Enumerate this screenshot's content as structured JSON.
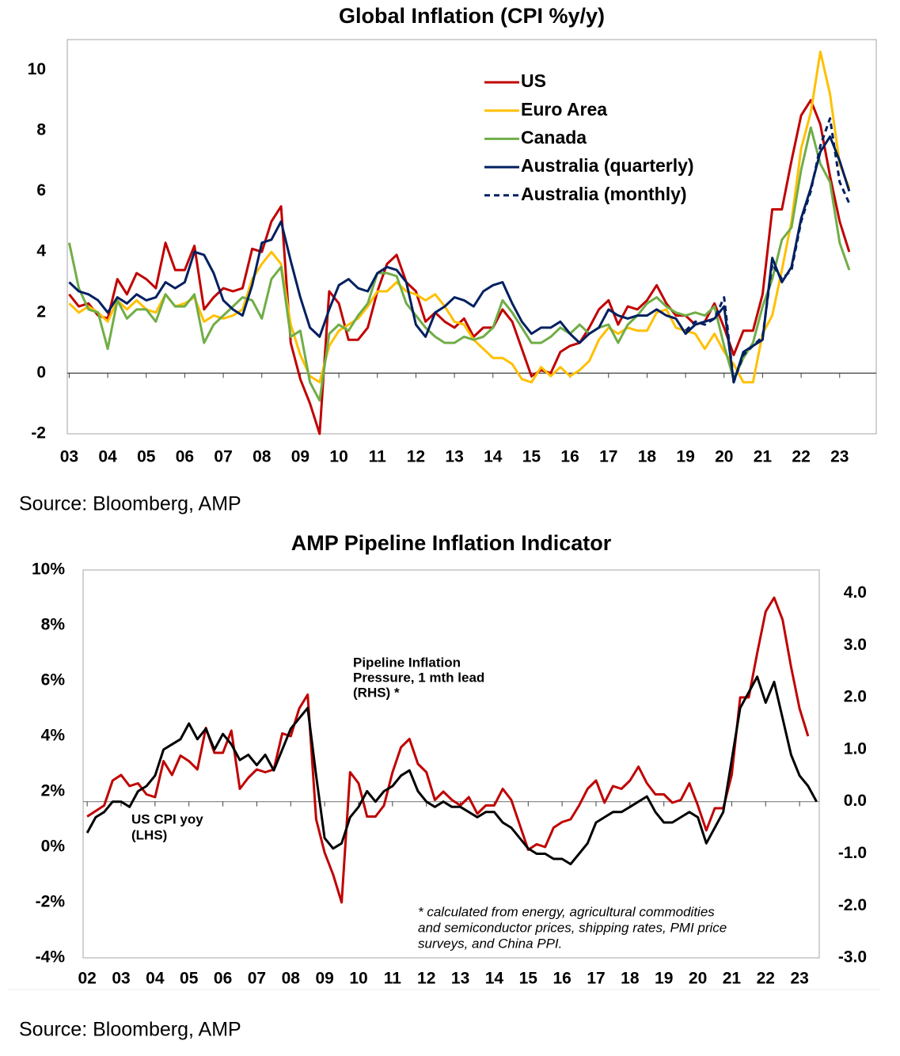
{
  "chart_data": [
    {
      "type": "line",
      "title": "Global Inflation (CPI %y/y)",
      "source": "Source: Bloomberg, AMP",
      "legend": "top",
      "x": [
        2003,
        2003.25,
        2003.5,
        2003.75,
        2004,
        2004.25,
        2004.5,
        2004.75,
        2005,
        2005.25,
        2005.5,
        2005.75,
        2006,
        2006.25,
        2006.5,
        2006.75,
        2007,
        2007.25,
        2007.5,
        2007.75,
        2008,
        2008.25,
        2008.5,
        2008.75,
        2009,
        2009.25,
        2009.5,
        2009.75,
        2010,
        2010.25,
        2010.5,
        2010.75,
        2011,
        2011.25,
        2011.5,
        2011.75,
        2012,
        2012.25,
        2012.5,
        2012.75,
        2013,
        2013.25,
        2013.5,
        2013.75,
        2014,
        2014.25,
        2014.5,
        2014.75,
        2015,
        2015.25,
        2015.5,
        2015.75,
        2016,
        2016.25,
        2016.5,
        2016.75,
        2017,
        2017.25,
        2017.5,
        2017.75,
        2018,
        2018.25,
        2018.5,
        2018.75,
        2019,
        2019.25,
        2019.5,
        2019.75,
        2020,
        2020.25,
        2020.5,
        2020.75,
        2021,
        2021.25,
        2021.5,
        2021.75,
        2022,
        2022.25,
        2022.5,
        2022.75,
        2023,
        2023.25
      ],
      "xlim": [
        2002.95,
        2023.95
      ],
      "xticks": [
        {
          "value": 2003,
          "label": "03"
        },
        {
          "value": 2004,
          "label": "04"
        },
        {
          "value": 2005,
          "label": "05"
        },
        {
          "value": 2006,
          "label": "06"
        },
        {
          "value": 2007,
          "label": "07"
        },
        {
          "value": 2008,
          "label": "08"
        },
        {
          "value": 2009,
          "label": "09"
        },
        {
          "value": 2010,
          "label": "10"
        },
        {
          "value": 2011,
          "label": "11"
        },
        {
          "value": 2012,
          "label": "12"
        },
        {
          "value": 2013,
          "label": "13"
        },
        {
          "value": 2014,
          "label": "14"
        },
        {
          "value": 2015,
          "label": "15"
        },
        {
          "value": 2016,
          "label": "16"
        },
        {
          "value": 2017,
          "label": "17"
        },
        {
          "value": 2018,
          "label": "18"
        },
        {
          "value": 2019,
          "label": "19"
        },
        {
          "value": 2020,
          "label": "20"
        },
        {
          "value": 2021,
          "label": "21"
        },
        {
          "value": 2022,
          "label": "22"
        },
        {
          "value": 2023,
          "label": "23"
        }
      ],
      "ylim": [
        -2,
        11
      ],
      "yticks": [
        -2,
        0,
        2,
        4,
        6,
        8,
        10
      ],
      "series": [
        {
          "name": "US",
          "color": "#c00000",
          "values": [
            2.6,
            2.2,
            2.3,
            1.9,
            1.8,
            3.1,
            2.6,
            3.3,
            3.1,
            2.8,
            4.3,
            3.4,
            3.4,
            4.2,
            2.1,
            2.5,
            2.8,
            2.7,
            2.8,
            4.1,
            4.0,
            5.0,
            5.5,
            1.0,
            -0.2,
            -1.0,
            -2.0,
            2.7,
            2.3,
            1.1,
            1.1,
            1.5,
            2.7,
            3.6,
            3.9,
            3.0,
            2.7,
            1.7,
            2.0,
            1.7,
            1.5,
            1.8,
            1.2,
            1.5,
            1.5,
            2.1,
            1.7,
            0.8,
            -0.1,
            0.1,
            0.0,
            0.7,
            0.9,
            1.0,
            1.5,
            2.1,
            2.4,
            1.6,
            2.2,
            2.1,
            2.4,
            2.9,
            2.3,
            1.9,
            1.9,
            1.6,
            1.7,
            2.3,
            1.5,
            0.6,
            1.4,
            1.4,
            2.6,
            5.4,
            5.4,
            7.0,
            8.5,
            9.0,
            8.2,
            6.5,
            5.0,
            4.0
          ]
        },
        {
          "name": "Euro Area",
          "color": "#ffc000",
          "values": [
            2.3,
            2.0,
            2.2,
            2.0,
            1.7,
            2.4,
            2.1,
            2.4,
            2.1,
            2.0,
            2.6,
            2.2,
            2.3,
            2.5,
            1.7,
            1.9,
            1.8,
            1.9,
            2.1,
            3.1,
            3.6,
            4.0,
            3.6,
            1.6,
            0.6,
            -0.1,
            -0.3,
            0.9,
            1.4,
            1.6,
            1.8,
            2.2,
            2.7,
            2.7,
            3.0,
            2.7,
            2.6,
            2.4,
            2.6,
            2.2,
            1.7,
            1.6,
            1.1,
            0.8,
            0.5,
            0.5,
            0.3,
            -0.2,
            -0.3,
            0.2,
            -0.1,
            0.2,
            -0.1,
            0.1,
            0.4,
            1.1,
            1.5,
            1.3,
            1.5,
            1.4,
            1.4,
            2.0,
            2.1,
            1.5,
            1.4,
            1.3,
            0.8,
            1.3,
            0.7,
            0.3,
            -0.3,
            -0.3,
            1.3,
            1.9,
            3.4,
            5.0,
            7.4,
            8.6,
            10.6,
            9.2,
            6.9,
            6.1
          ]
        },
        {
          "name": "Canada",
          "color": "#70ad47",
          "values": [
            4.3,
            2.8,
            2.1,
            2.0,
            0.8,
            2.4,
            1.8,
            2.1,
            2.1,
            1.7,
            2.6,
            2.2,
            2.2,
            2.6,
            1.0,
            1.6,
            1.9,
            2.2,
            2.5,
            2.4,
            1.8,
            3.1,
            3.5,
            1.2,
            1.4,
            -0.3,
            -0.9,
            1.3,
            1.6,
            1.4,
            1.9,
            2.3,
            3.3,
            3.3,
            3.2,
            2.3,
            1.9,
            1.5,
            1.2,
            1.0,
            1.0,
            1.2,
            1.1,
            1.2,
            1.5,
            2.4,
            2.0,
            1.5,
            1.0,
            1.0,
            1.2,
            1.5,
            1.3,
            1.6,
            1.3,
            1.5,
            1.6,
            1.0,
            1.6,
            1.9,
            2.3,
            2.5,
            2.2,
            2.0,
            1.9,
            2.0,
            1.9,
            2.2,
            0.9,
            -0.2,
            0.5,
            1.0,
            2.2,
            3.1,
            4.4,
            4.8,
            6.7,
            8.1,
            6.9,
            6.3,
            4.3,
            3.4
          ]
        },
        {
          "name": "Australia (quarterly)",
          "color": "#002060",
          "values": [
            3.0,
            2.7,
            2.6,
            2.4,
            2.0,
            2.5,
            2.3,
            2.6,
            2.4,
            2.5,
            3.0,
            2.8,
            3.0,
            4.0,
            3.9,
            3.3,
            2.4,
            2.1,
            1.9,
            2.9,
            4.3,
            4.4,
            5.0,
            3.7,
            2.5,
            1.5,
            1.2,
            2.1,
            2.9,
            3.1,
            2.8,
            2.7,
            3.3,
            3.5,
            3.4,
            3.0,
            1.6,
            1.2,
            2.0,
            2.2,
            2.5,
            2.4,
            2.2,
            2.7,
            2.9,
            3.0,
            2.3,
            1.7,
            1.3,
            1.5,
            1.5,
            1.7,
            1.3,
            1.0,
            1.3,
            1.5,
            2.1,
            1.9,
            1.8,
            1.9,
            1.9,
            2.1,
            1.9,
            1.8,
            1.3,
            1.6,
            1.7,
            1.8,
            2.2,
            -0.3,
            0.7,
            0.9,
            1.1,
            3.8,
            3.0,
            3.5,
            5.1,
            6.1,
            7.3,
            7.8,
            7.0,
            6.0
          ]
        },
        {
          "name": "Australia (monthly)",
          "color": "#002060",
          "dashed": true,
          "values": [
            null,
            null,
            null,
            null,
            null,
            null,
            null,
            null,
            null,
            null,
            null,
            null,
            null,
            null,
            null,
            null,
            null,
            null,
            null,
            null,
            null,
            null,
            null,
            null,
            null,
            null,
            null,
            null,
            null,
            null,
            null,
            null,
            null,
            null,
            null,
            null,
            null,
            null,
            null,
            null,
            null,
            null,
            null,
            null,
            null,
            null,
            null,
            null,
            null,
            null,
            null,
            null,
            null,
            null,
            null,
            null,
            null,
            null,
            null,
            null,
            null,
            null,
            null,
            null,
            1.4,
            1.7,
            1.6,
            1.8,
            2.5,
            -0.3,
            0.6,
            0.9,
            1.2,
            3.6,
            3.1,
            3.4,
            5.0,
            6.0,
            7.5,
            8.4,
            6.3,
            5.6
          ]
        }
      ]
    },
    {
      "type": "line",
      "title": "AMP Pipeline Inflation Indicator",
      "source": "Source: Bloomberg, AMP",
      "x": [
        2002,
        2002.25,
        2002.5,
        2002.75,
        2003,
        2003.25,
        2003.5,
        2003.75,
        2004,
        2004.25,
        2004.5,
        2004.75,
        2005,
        2005.25,
        2005.5,
        2005.75,
        2006,
        2006.25,
        2006.5,
        2006.75,
        2007,
        2007.25,
        2007.5,
        2007.75,
        2008,
        2008.25,
        2008.5,
        2008.75,
        2009,
        2009.25,
        2009.5,
        2009.75,
        2010,
        2010.25,
        2010.5,
        2010.75,
        2011,
        2011.25,
        2011.5,
        2011.75,
        2012,
        2012.25,
        2012.5,
        2012.75,
        2013,
        2013.25,
        2013.5,
        2013.75,
        2014,
        2014.25,
        2014.5,
        2014.75,
        2015,
        2015.25,
        2015.5,
        2015.75,
        2016,
        2016.25,
        2016.5,
        2016.75,
        2017,
        2017.25,
        2017.5,
        2017.75,
        2018,
        2018.25,
        2018.5,
        2018.75,
        2019,
        2019.25,
        2019.5,
        2019.75,
        2020,
        2020.25,
        2020.5,
        2020.75,
        2021,
        2021.25,
        2021.5,
        2021.75,
        2022,
        2022.25,
        2022.5,
        2022.75,
        2023,
        2023.25,
        2023.5
      ],
      "xlim": [
        2001.88,
        2023.58
      ],
      "xticks": [
        {
          "value": 2002,
          "label": "02"
        },
        {
          "value": 2003,
          "label": "03"
        },
        {
          "value": 2004,
          "label": "04"
        },
        {
          "value": 2005,
          "label": "05"
        },
        {
          "value": 2006,
          "label": "06"
        },
        {
          "value": 2007,
          "label": "07"
        },
        {
          "value": 2008,
          "label": "08"
        },
        {
          "value": 2009,
          "label": "09"
        },
        {
          "value": 2010,
          "label": "10"
        },
        {
          "value": 2011,
          "label": "11"
        },
        {
          "value": 2012,
          "label": "12"
        },
        {
          "value": 2013,
          "label": "13"
        },
        {
          "value": 2014,
          "label": "14"
        },
        {
          "value": 2015,
          "label": "15"
        },
        {
          "value": 2016,
          "label": "16"
        },
        {
          "value": 2017,
          "label": "17"
        },
        {
          "value": 2018,
          "label": "18"
        },
        {
          "value": 2019,
          "label": "19"
        },
        {
          "value": 2020,
          "label": "20"
        },
        {
          "value": 2021,
          "label": "21"
        },
        {
          "value": 2022,
          "label": "22"
        },
        {
          "value": 2023,
          "label": "23"
        }
      ],
      "ylim": [
        -4,
        10
      ],
      "yticks": [
        {
          "value": -4,
          "label": "-4%"
        },
        {
          "value": -2,
          "label": "-2%"
        },
        {
          "value": 0,
          "label": "0%"
        },
        {
          "value": 2,
          "label": "2%"
        },
        {
          "value": 4,
          "label": "4%"
        },
        {
          "value": 6,
          "label": "6%"
        },
        {
          "value": 8,
          "label": "8%"
        },
        {
          "value": 10,
          "label": "10%"
        }
      ],
      "y2lim": [
        -3,
        4.45
      ],
      "y2ticks": [
        {
          "value": -3,
          "label": "-3.0"
        },
        {
          "value": -2,
          "label": "-2.0"
        },
        {
          "value": -1,
          "label": "-1.0"
        },
        {
          "value": 0,
          "label": "0.0"
        },
        {
          "value": 1,
          "label": "1.0"
        },
        {
          "value": 2,
          "label": "2.0"
        },
        {
          "value": 3,
          "label": "3.0"
        },
        {
          "value": 4,
          "label": "4.0"
        }
      ],
      "annotations": [
        [
          "Pipeline Inflation",
          "Pressure, 1 mth lead",
          "(RHS) *"
        ],
        [
          "US CPI yoy",
          "(LHS)"
        ],
        [
          "* calculated from energy, agricultural commodities",
          "and semiconductor prices, shipping rates, PMI price",
          "surveys, and China PPI."
        ]
      ],
      "series": [
        {
          "color": "#c00000",
          "values": [
            1.1,
            1.3,
            1.5,
            2.4,
            2.6,
            2.2,
            2.3,
            1.9,
            1.8,
            3.1,
            2.6,
            3.3,
            3.1,
            2.8,
            4.3,
            3.4,
            3.4,
            4.2,
            2.1,
            2.5,
            2.8,
            2.7,
            2.8,
            4.1,
            4.0,
            5.0,
            5.5,
            1.0,
            -0.2,
            -1.0,
            -2.0,
            2.7,
            2.3,
            1.1,
            1.1,
            1.5,
            2.7,
            3.6,
            3.9,
            3.0,
            2.7,
            1.7,
            2.0,
            1.7,
            1.5,
            1.8,
            1.2,
            1.5,
            1.5,
            2.1,
            1.7,
            0.8,
            -0.1,
            0.1,
            0.0,
            0.7,
            0.9,
            1.0,
            1.5,
            2.1,
            2.4,
            1.6,
            2.2,
            2.1,
            2.4,
            2.9,
            2.3,
            1.9,
            1.9,
            1.6,
            1.7,
            2.3,
            1.5,
            0.6,
            1.4,
            1.4,
            2.6,
            5.4,
            5.4,
            7.0,
            8.5,
            9.0,
            8.2,
            6.5,
            5.0,
            4.0,
            null
          ]
        },
        {
          "color": "#000000",
          "axis": "y2",
          "values": [
            -0.6,
            -0.3,
            -0.2,
            0.0,
            0.0,
            -0.1,
            0.2,
            0.3,
            0.5,
            1.0,
            1.1,
            1.2,
            1.5,
            1.2,
            1.4,
            1.0,
            1.3,
            1.1,
            0.8,
            0.9,
            0.7,
            0.9,
            0.6,
            1.0,
            1.4,
            1.6,
            1.8,
            0.5,
            -0.7,
            -0.9,
            -0.8,
            -0.3,
            -0.1,
            0.2,
            0.0,
            0.2,
            0.3,
            0.5,
            0.6,
            0.2,
            0.0,
            -0.1,
            0.0,
            -0.1,
            -0.1,
            -0.2,
            -0.3,
            -0.2,
            -0.2,
            -0.4,
            -0.5,
            -0.7,
            -0.9,
            -1.0,
            -1.0,
            -1.1,
            -1.1,
            -1.2,
            -1.0,
            -0.8,
            -0.4,
            -0.3,
            -0.2,
            -0.2,
            -0.1,
            0.0,
            0.1,
            -0.2,
            -0.4,
            -0.4,
            -0.3,
            -0.2,
            -0.3,
            -0.8,
            -0.5,
            -0.2,
            0.8,
            1.8,
            2.1,
            2.4,
            1.9,
            2.3,
            1.6,
            0.9,
            0.5,
            0.3,
            0.0
          ]
        }
      ]
    }
  ]
}
